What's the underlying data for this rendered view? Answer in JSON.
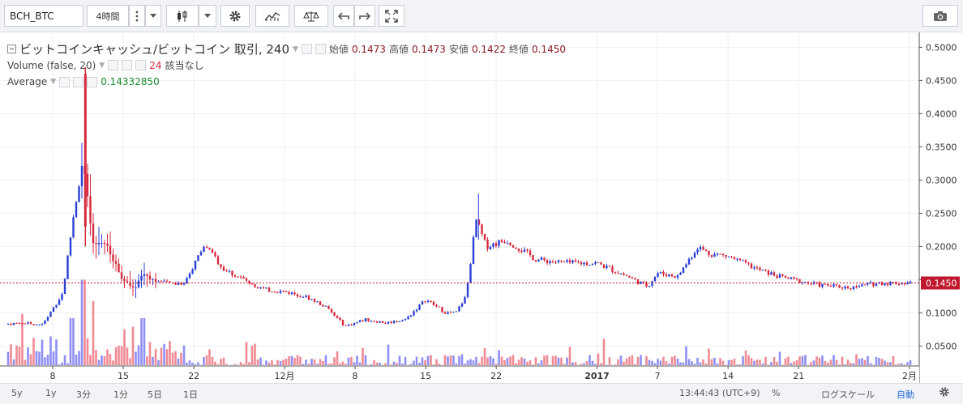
{
  "toolbar": {
    "symbol": "BCH_BTC",
    "interval": "4時間",
    "icons": [
      "more-icon",
      "dropdown-icon",
      "candles-icon",
      "dropdown-icon",
      "gear-icon",
      "indicators-icon",
      "compare-icon",
      "undo-icon",
      "redo-icon",
      "fullscreen-icon",
      "camera-icon"
    ]
  },
  "legend": {
    "title": "ビットコインキャッシュ/ビットコイン 取引, 240",
    "open_label": "始値",
    "open": "0.1473",
    "high_label": "高値",
    "high": "0.1473",
    "low_label": "安値",
    "low": "0.1422",
    "close_label": "終値",
    "close": "0.1450",
    "volume_label": "Volume (false, 20)",
    "volume_value": "24",
    "volume_status": "該当なし",
    "average_label": "Average",
    "average_value": "0.14332850"
  },
  "colors": {
    "up": "#2a3fd6",
    "down": "#d6293d",
    "vol_up": "#8f8ff5",
    "vol_down": "#f08a94",
    "price_line": "#c0182c"
  },
  "price_tag": "0.1450",
  "bottom": {
    "ranges": [
      "5y",
      "1y",
      "3分",
      "1分",
      "5日",
      "1日"
    ],
    "time": "13:44:43 (UTC+9)",
    "percent": "%",
    "log": "ログスケール",
    "auto": "自動"
  },
  "chart_data": {
    "type": "candlestick",
    "ylim": [
      0.02,
      0.52
    ],
    "y_ticks": [
      "0.0500",
      "0.1000",
      "0.1500",
      "0.2000",
      "0.2500",
      "0.3000",
      "0.3500",
      "0.4000",
      "0.4500",
      "0.5000"
    ],
    "x_tick_labels": [
      "8",
      "15",
      "22",
      "12月",
      "8",
      "15",
      "22",
      "2017",
      "7",
      "14",
      "21",
      "2月"
    ],
    "last_price": 0.145,
    "close_path_x": [
      "11/01",
      "11/05",
      "11/07",
      "11/09",
      "11/10",
      "11/11",
      "11/12",
      "11/13",
      "11/14",
      "11/15",
      "11/16",
      "11/17",
      "11/18",
      "11/19",
      "11/21",
      "11/23",
      "11/24",
      "11/25",
      "11/27",
      "11/29",
      "12/01",
      "12/03",
      "12/05",
      "12/07",
      "12/08",
      "12/09",
      "12/11",
      "12/13",
      "12/15",
      "12/17",
      "12/18",
      "12/19",
      "12/20",
      "12/21",
      "12/23",
      "12/26",
      "12/29",
      "01/01",
      "01/04",
      "01/06",
      "01/07",
      "01/09",
      "01/11",
      "01/12",
      "01/14",
      "01/17",
      "01/19",
      "01/21",
      "01/23",
      "01/26",
      "01/29",
      "02/01",
      "02/02"
    ],
    "close_path_y": [
      0.08,
      0.085,
      0.082,
      0.13,
      0.24,
      0.33,
      0.2,
      0.21,
      0.18,
      0.15,
      0.135,
      0.16,
      0.15,
      0.145,
      0.145,
      0.2,
      0.185,
      0.165,
      0.15,
      0.135,
      0.132,
      0.125,
      0.11,
      0.08,
      0.085,
      0.09,
      0.085,
      0.09,
      0.12,
      0.1,
      0.1,
      0.125,
      0.24,
      0.2,
      0.21,
      0.18,
      0.175,
      0.175,
      0.155,
      0.14,
      0.16,
      0.155,
      0.2,
      0.19,
      0.185,
      0.165,
      0.155,
      0.148,
      0.142,
      0.138,
      0.145,
      0.145,
      0.145
    ],
    "volume_max_note": "relative",
    "volume_spikes": [
      {
        "x": "11/05",
        "v": 0.6
      },
      {
        "x": "11/10",
        "v": 0.55
      },
      {
        "x": "11/11",
        "v": 1.0
      },
      {
        "x": "11/12",
        "v": 0.75
      },
      {
        "x": "11/16",
        "v": 0.45
      },
      {
        "x": "11/17",
        "v": 0.55
      }
    ]
  }
}
